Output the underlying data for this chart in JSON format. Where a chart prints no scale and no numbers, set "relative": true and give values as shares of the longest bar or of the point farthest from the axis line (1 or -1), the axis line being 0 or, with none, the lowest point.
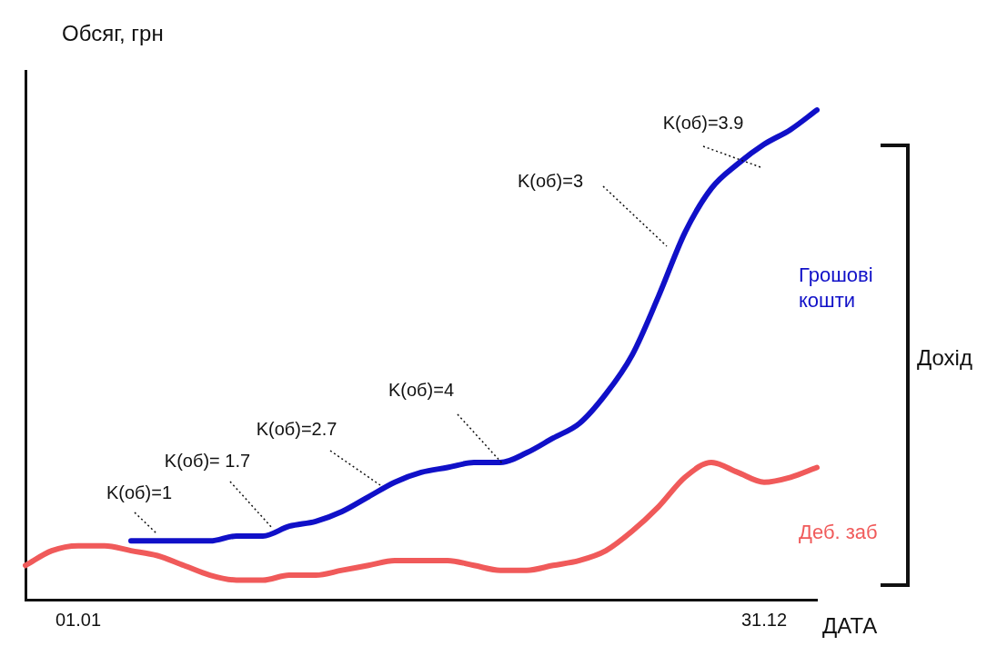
{
  "chart_data": {
    "type": "line",
    "relative": true,
    "ylabel": "Обсяг, грн",
    "xlabel": "ДАТА",
    "categories": [
      null,
      null,
      "01.01",
      null,
      null,
      null,
      null,
      null,
      null,
      null,
      null,
      null,
      null,
      null,
      null,
      null,
      null,
      null,
      null,
      null,
      null,
      null,
      null,
      null,
      null,
      null,
      null,
      null,
      "31.12",
      null,
      null
    ],
    "series": [
      {
        "name": "Грошові кошти",
        "color": "#1010c8",
        "values": [
          null,
          null,
          null,
          null,
          0.12,
          0.12,
          0.12,
          0.12,
          0.13,
          0.13,
          0.15,
          0.16,
          0.18,
          0.21,
          0.24,
          0.26,
          0.27,
          0.28,
          0.28,
          0.3,
          0.33,
          0.36,
          0.42,
          0.5,
          0.62,
          0.75,
          0.84,
          0.89,
          0.93,
          0.96,
          1
        ]
      },
      {
        "name": "Деб. заб",
        "color": "#f05a5a",
        "values": [
          0.07,
          0.1,
          0.11,
          0.11,
          0.1,
          0.09,
          0.07,
          0.05,
          0.04,
          0.04,
          0.05,
          0.05,
          0.06,
          0.07,
          0.08,
          0.08,
          0.08,
          0.07,
          0.06,
          0.06,
          0.07,
          0.08,
          0.1,
          0.14,
          0.19,
          0.25,
          0.28,
          0.26,
          0.24,
          0.25,
          0.27
        ]
      }
    ],
    "annotations": [
      "K(об)=1",
      "K(об)= 1.7",
      "K(об)=2.7",
      "K(об)=4",
      "K(об)=3",
      "K(об)=3.9",
      "Дохід"
    ],
    "grid": false,
    "legend": false,
    "marker": "none",
    "line_style": "solid"
  }
}
